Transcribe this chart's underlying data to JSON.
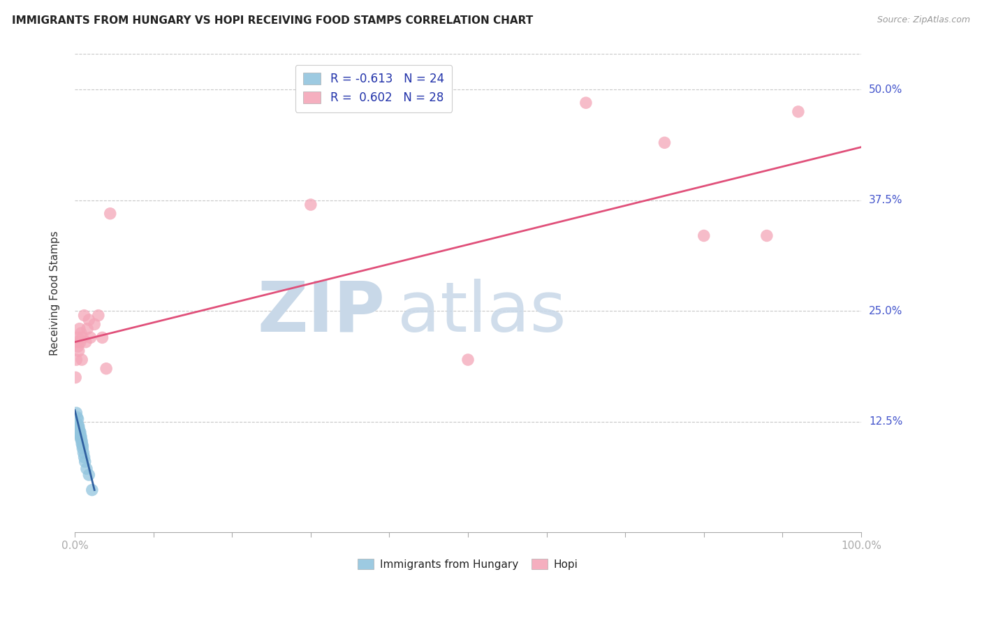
{
  "title": "IMMIGRANTS FROM HUNGARY VS HOPI RECEIVING FOOD STAMPS CORRELATION CHART",
  "source": "Source: ZipAtlas.com",
  "ylabel": "Receiving Food Stamps",
  "ytick_labels": [
    "12.5%",
    "25.0%",
    "37.5%",
    "50.0%"
  ],
  "ytick_values": [
    0.125,
    0.25,
    0.375,
    0.5
  ],
  "xlim": [
    0.0,
    1.0
  ],
  "ylim": [
    0.0,
    0.54
  ],
  "legend_label1": "Immigrants from Hungary",
  "legend_label2": "Hopi",
  "blue_color": "#92c5de",
  "pink_color": "#f4a6b8",
  "blue_line_color": "#3060a0",
  "pink_line_color": "#e0507a",
  "blue_x": [
    0.002,
    0.003,
    0.004,
    0.004,
    0.005,
    0.005,
    0.005,
    0.006,
    0.006,
    0.007,
    0.007,
    0.007,
    0.008,
    0.008,
    0.009,
    0.009,
    0.01,
    0.01,
    0.011,
    0.012,
    0.013,
    0.015,
    0.018,
    0.022
  ],
  "blue_y": [
    0.135,
    0.13,
    0.128,
    0.122,
    0.12,
    0.118,
    0.115,
    0.112,
    0.115,
    0.108,
    0.11,
    0.113,
    0.105,
    0.108,
    0.1,
    0.103,
    0.095,
    0.098,
    0.09,
    0.085,
    0.08,
    0.072,
    0.065,
    0.048
  ],
  "pink_x": [
    0.001,
    0.002,
    0.003,
    0.004,
    0.004,
    0.005,
    0.006,
    0.007,
    0.008,
    0.009,
    0.01,
    0.012,
    0.014,
    0.016,
    0.018,
    0.02,
    0.025,
    0.03,
    0.035,
    0.04,
    0.045,
    0.3,
    0.5,
    0.65,
    0.75,
    0.8,
    0.88,
    0.92
  ],
  "pink_y": [
    0.175,
    0.195,
    0.215,
    0.21,
    0.22,
    0.205,
    0.23,
    0.215,
    0.225,
    0.195,
    0.22,
    0.245,
    0.215,
    0.23,
    0.24,
    0.22,
    0.235,
    0.245,
    0.22,
    0.185,
    0.36,
    0.37,
    0.195,
    0.485,
    0.44,
    0.335,
    0.335,
    0.475
  ],
  "pink_line_start_x": 0.0,
  "pink_line_start_y": 0.215,
  "pink_line_end_x": 1.0,
  "pink_line_end_y": 0.435,
  "blue_line_start_x": 0.0,
  "blue_line_start_y": 0.138,
  "blue_line_end_x": 0.025,
  "blue_line_end_y": 0.048,
  "background_color": "#ffffff",
  "grid_color": "#c8c8c8"
}
